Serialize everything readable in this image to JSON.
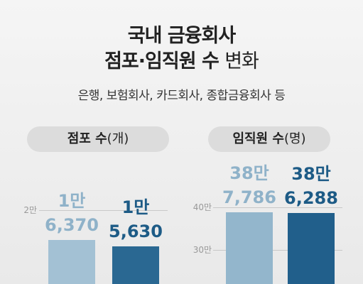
{
  "header": {
    "title_line1": "국내 금융회사",
    "title_bold": "점포·임직원 수",
    "title_light": "변화",
    "subtitle": "은행, 보험회사, 카드회사, 종합금융회사 등"
  },
  "chart_data": [
    {
      "type": "bar",
      "title": "점포 수",
      "unit": "(개)",
      "categories": [
        null,
        null
      ],
      "values": [
        16370,
        15630
      ],
      "value_labels": [
        "1만\n6,370",
        "1만\n5,630"
      ],
      "colors": [
        "#a3c1d4",
        "#2a6892"
      ],
      "label_colors": [
        "#8fb2c9",
        "#1d5b86"
      ],
      "ylim": [
        0,
        24000
      ],
      "yticks": [
        {
          "value": 20000,
          "label": "2만"
        }
      ],
      "grid": true
    },
    {
      "type": "bar",
      "title": "임직원 수",
      "unit": "(명)",
      "categories": [
        null,
        null
      ],
      "values": [
        387786,
        386288
      ],
      "value_labels": [
        "38만\n7,786",
        "38만\n6,288"
      ],
      "colors": [
        "#93b6cc",
        "#215f8b"
      ],
      "label_colors": [
        "#8fb2c9",
        "#1d5b86"
      ],
      "ylim": [
        0,
        450000
      ],
      "yticks": [
        {
          "value": 400000,
          "label": "40만"
        },
        {
          "value": 300000,
          "label": "30만"
        }
      ],
      "grid": true
    }
  ]
}
